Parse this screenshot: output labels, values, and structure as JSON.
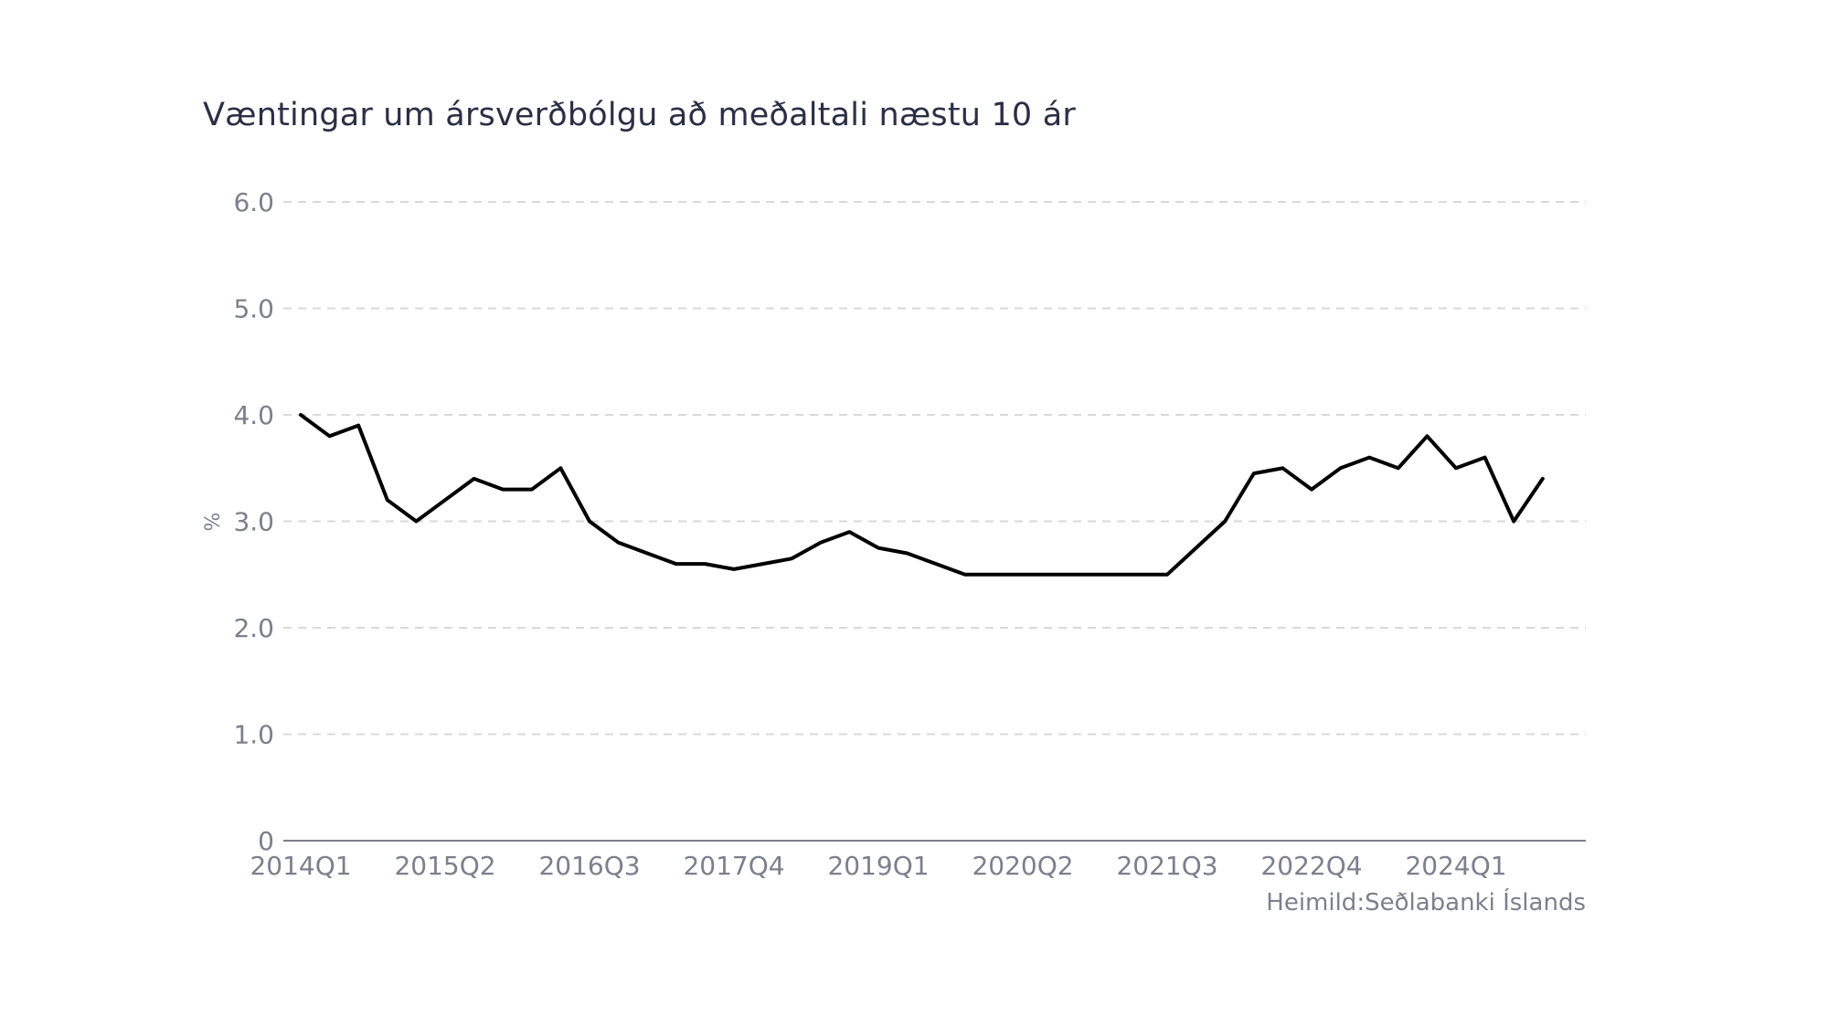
{
  "chart_data": {
    "type": "line",
    "title": "Væntingar um ársverðbólgu að meðaltali næstu 10 ár",
    "ylabel": "%",
    "xlabel": "",
    "source": "Heimild:Seðlabanki Íslands",
    "ylim": [
      0,
      6
    ],
    "y_ticks": [
      {
        "value": 0,
        "label": "0"
      },
      {
        "value": 1,
        "label": "1.0"
      },
      {
        "value": 2,
        "label": "2.0"
      },
      {
        "value": 3,
        "label": "3.0"
      },
      {
        "value": 4,
        "label": "4.0"
      },
      {
        "value": 5,
        "label": "5.0"
      },
      {
        "value": 6,
        "label": "6.0"
      }
    ],
    "x_tick_labels": [
      "2014Q1",
      "2015Q2",
      "2016Q3",
      "2017Q4",
      "2019Q1",
      "2020Q2",
      "2021Q3",
      "2022Q4",
      "2024Q1"
    ],
    "grid": true,
    "legend": "none",
    "line_color": "#000000",
    "categories": [
      "2014Q1",
      "2014Q2",
      "2014Q3",
      "2014Q4",
      "2015Q1",
      "2015Q2",
      "2015Q3",
      "2015Q4",
      "2016Q1",
      "2016Q2",
      "2016Q3",
      "2016Q4",
      "2017Q1",
      "2017Q2",
      "2017Q3",
      "2017Q4",
      "2018Q1",
      "2018Q2",
      "2018Q3",
      "2018Q4",
      "2019Q1",
      "2019Q2",
      "2019Q3",
      "2019Q4",
      "2020Q1",
      "2020Q2",
      "2020Q3",
      "2020Q4",
      "2021Q1",
      "2021Q2",
      "2021Q3",
      "2021Q4",
      "2022Q1",
      "2022Q2",
      "2022Q3",
      "2022Q4",
      "2023Q1",
      "2023Q2",
      "2023Q3",
      "2023Q4",
      "2024Q1",
      "2024Q2",
      "2024Q3",
      "2024Q4",
      "2025Q1"
    ],
    "series": [
      {
        "values": [
          4.0,
          3.8,
          3.9,
          3.2,
          3.0,
          3.2,
          3.4,
          3.3,
          3.3,
          3.5,
          3.0,
          2.8,
          2.7,
          2.6,
          2.6,
          2.55,
          2.6,
          2.65,
          2.8,
          2.9,
          2.75,
          2.7,
          2.6,
          2.5,
          2.5,
          2.5,
          2.5,
          2.5,
          2.5,
          2.5,
          2.5,
          2.75,
          3.0,
          3.45,
          3.5,
          3.3,
          3.5,
          3.6,
          3.5,
          3.8,
          3.5,
          3.6,
          3.0,
          3.4,
          null
        ]
      }
    ]
  }
}
